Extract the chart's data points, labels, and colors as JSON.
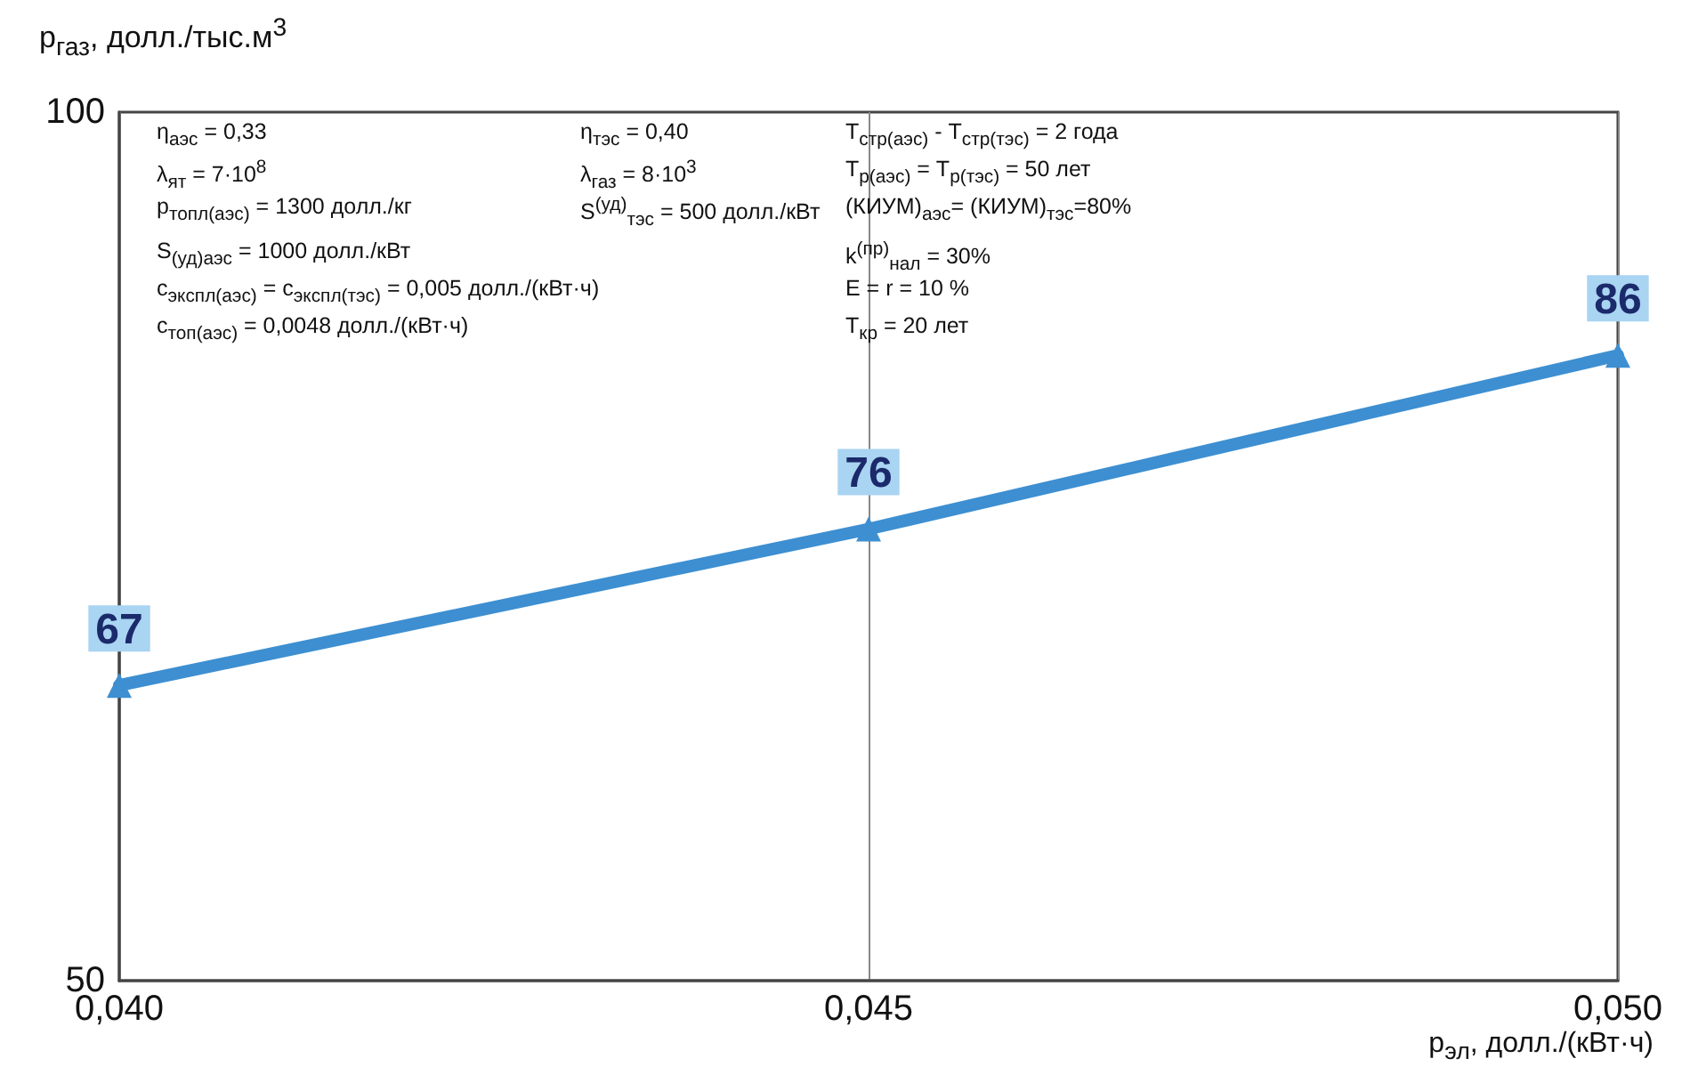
{
  "chart_data": {
    "type": "line",
    "xlabel": "p$_{эл}$, долл./(кВт·ч)",
    "ylabel": "p$_{газ}$, долл./тыс.м$^{3}$",
    "x": [
      0.04,
      0.045,
      0.05
    ],
    "series": [
      {
        "color": "#3d8fd1",
        "values": [
          67,
          76,
          86
        ]
      }
    ],
    "xlim": [
      0.04,
      0.05
    ],
    "xticks": [
      {
        "value": 0.04,
        "label": "0,040"
      },
      {
        "value": 0.045,
        "label": "0,045"
      },
      {
        "value": 0.05,
        "label": "0,050"
      }
    ],
    "ylim": [
      50,
      100
    ],
    "yticks": [
      50,
      100
    ],
    "grid": "x",
    "marker": "triangle",
    "line_style": "solid",
    "data_labels": true,
    "annotations": [
      "η$_{аэс}$ = 0,33",
      "λ$_{ят}$ = 7·10$^{8}$",
      "p$_{топл(аэс)}$ = 1300 долл./кг",
      "S$_{(уд)аэс}$ = 1000 долл./кВт",
      "c$_{экспл(аэс)}$ = c$_{экспл(тэс)}$ = 0,005 долл./(кВт·ч)",
      "c$_{топ(аэс)}$ = 0,0048 долл./(кВт·ч)",
      "η$_{тэс}$ = 0,40",
      "λ$_{газ}$ = 8·10$^{3}$",
      "S$^{(уд)}$$_{тэс}$ = 500 долл./кВт",
      "T$_{стр(аэс)}$ - T$_{стр(тэс)}$ = 2 года",
      "T$_{р(аэс)}$ = T$_{р(тэс)}$ = 50 лет",
      "(КИУМ)$_{аэс}$= (КИУМ)$_{тэс}$=80%",
      "k$^{(пр)}$$_{нал}$ = 30%",
      "E = r = 10 %",
      "T$_{кр}$ = 20 лет"
    ]
  }
}
